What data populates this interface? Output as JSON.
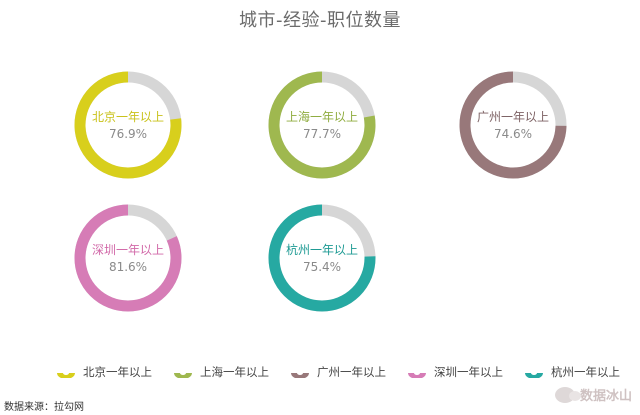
{
  "chart_data": {
    "type": "donut",
    "title": "城市-经验-职位数量",
    "series": [
      {
        "name": "北京一年以上",
        "value": 76.9,
        "label": "76.9%",
        "color": "#d8cf1c",
        "label_color": "#c9c21a"
      },
      {
        "name": "上海一年以上",
        "value": 77.7,
        "label": "77.7%",
        "color": "#9fb84f",
        "label_color": "#8fac3f"
      },
      {
        "name": "广州一年以上",
        "value": 74.6,
        "label": "74.6%",
        "color": "#98787a",
        "label_color": "#7d6264"
      },
      {
        "name": "深圳一年以上",
        "value": 81.6,
        "label": "81.6%",
        "color": "#d67cb6",
        "label_color": "#d26aa9"
      },
      {
        "name": "杭州一年以上",
        "value": 75.4,
        "label": "75.4%",
        "color": "#26a9a2",
        "label_color": "#1d9a93"
      }
    ],
    "remainder_color": "#d6d6d6",
    "legend_position": "bottom"
  },
  "footer": {
    "source": "数据来源：拉勾网",
    "watermark": "数据冰山"
  }
}
